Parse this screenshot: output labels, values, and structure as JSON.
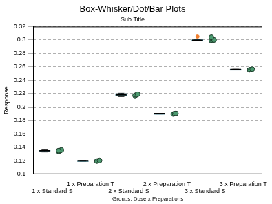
{
  "chart_data": {
    "type": "boxplot",
    "title": "Box-Whisker/Dot/Bar Plots",
    "subtitle": "Sub Title",
    "x_label": "Groups: Dose x Preparations",
    "y_label": "Response",
    "categories": [
      "1 x Standard S",
      "1 x Preparation T",
      "2 x Standard S",
      "2 x Preparation T",
      "3 x Standard S",
      "3 x Preparation T"
    ],
    "boxes": [
      {
        "min": 0.133,
        "q1": 0.1345,
        "median": 0.135,
        "q3": 0.136,
        "max": 0.137,
        "outliers": []
      },
      {
        "min": 0.1195,
        "q1": 0.1198,
        "median": 0.12,
        "q3": 0.1202,
        "max": 0.1205,
        "outliers": []
      },
      {
        "min": 0.2155,
        "q1": 0.2165,
        "median": 0.218,
        "q3": 0.2195,
        "max": 0.2205,
        "outliers": []
      },
      {
        "min": 0.1895,
        "q1": 0.1898,
        "median": 0.19,
        "q3": 0.1902,
        "max": 0.1905,
        "outliers": []
      },
      {
        "min": 0.2985,
        "q1": 0.299,
        "median": 0.2995,
        "q3": 0.3,
        "max": 0.3005,
        "outliers": [
          0.305
        ]
      },
      {
        "min": 0.2555,
        "q1": 0.2558,
        "median": 0.256,
        "q3": 0.2562,
        "max": 0.2565,
        "outliers": []
      }
    ],
    "points": [
      [
        0.134,
        0.135,
        0.136,
        0.135
      ],
      [
        0.1195,
        0.12,
        0.1205
      ],
      [
        0.217,
        0.218,
        0.219
      ],
      [
        0.1895,
        0.19,
        0.1905
      ],
      [
        0.299,
        0.2995,
        0.3,
        0.304
      ],
      [
        0.2555,
        0.256,
        0.2565
      ]
    ],
    "color": "#7fdede",
    "points_color": "#4c9a70",
    "outlier_color": "#f08030",
    "marker": "circle",
    "ylim": [
      0.1,
      0.32
    ],
    "yticks": [
      0.1,
      0.12,
      0.14,
      0.16,
      0.18,
      0.2,
      0.22,
      0.24,
      0.26,
      0.28,
      0.3,
      0.32
    ],
    "grid": true
  }
}
